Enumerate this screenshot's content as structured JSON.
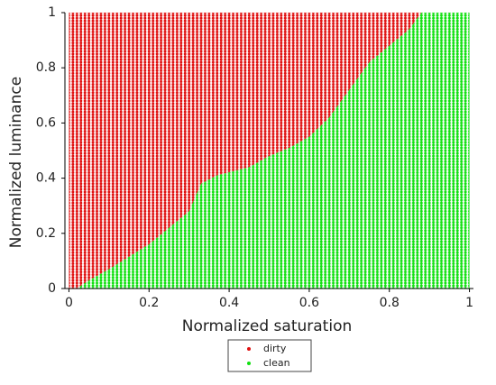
{
  "chart_data": {
    "type": "region",
    "xlabel": "Normalized saturation",
    "ylabel": "Normalized luminance",
    "xlim": [
      -0.01,
      1.01
    ],
    "ylim": [
      0,
      1
    ],
    "xticks": [
      0,
      0.2,
      0.4,
      0.6,
      0.8,
      1
    ],
    "yticks": [
      0,
      0.2,
      0.4,
      0.6,
      0.8,
      1
    ],
    "series": [
      {
        "name": "dirty",
        "color": "#e01010"
      },
      {
        "name": "clean",
        "color": "#10e010"
      }
    ],
    "boundary": {
      "x": [
        0.02,
        0.05,
        0.1,
        0.2,
        0.25,
        0.3,
        0.33,
        0.37,
        0.45,
        0.5,
        0.55,
        0.6,
        0.65,
        0.7,
        0.75,
        0.8,
        0.85,
        0.88
      ],
      "y": [
        0,
        0.03,
        0.07,
        0.16,
        0.22,
        0.28,
        0.38,
        0.41,
        0.44,
        0.48,
        0.51,
        0.55,
        0.62,
        0.72,
        0.82,
        0.88,
        0.94,
        1.0
      ]
    }
  }
}
